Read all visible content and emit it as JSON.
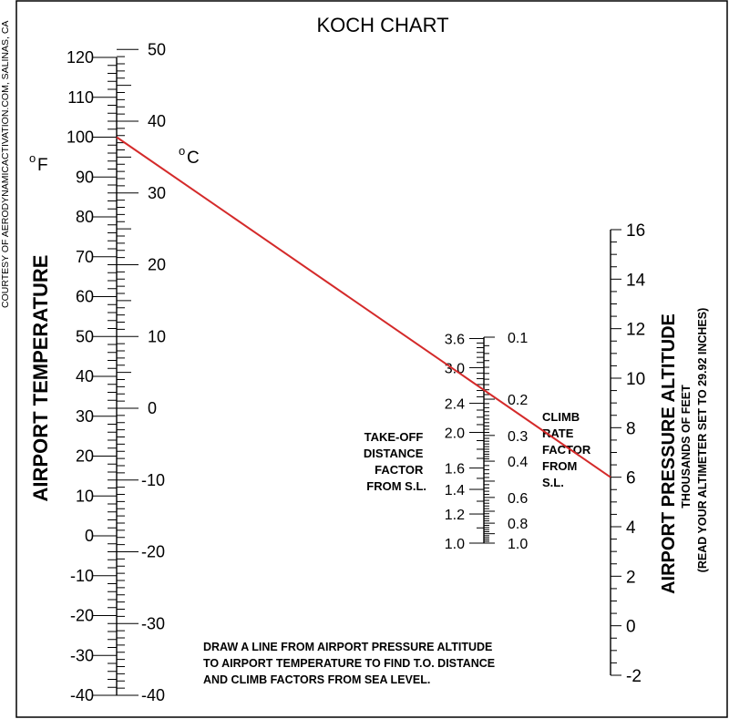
{
  "title": "KOCH CHART",
  "credit": "COURTESY OF AERODYNAMICACTIVATION.COM, SALINAS, CA",
  "temperature": {
    "axis_title": "AIRPORT TEMPERATURE",
    "f_unit": "F",
    "c_unit": "C",
    "unit_mark": "o",
    "f_range": [
      -40,
      120
    ],
    "c_range": [
      -40,
      50
    ],
    "f_labels": [
      "120",
      "110",
      "100",
      "90",
      "80",
      "70",
      "60",
      "50",
      "40",
      "30",
      "20",
      "10",
      "0",
      "-10",
      "-20",
      "-30",
      "-40"
    ],
    "c_labels": [
      "50",
      "40",
      "30",
      "20",
      "10",
      "0",
      "-10",
      "-20",
      "-30",
      "-40"
    ]
  },
  "takeoff": {
    "title_lines": [
      "TAKE-OFF",
      "DISTANCE",
      "FACTOR",
      "FROM S.L."
    ],
    "labels": [
      "3.6",
      "3.0",
      "2.4",
      "2.0",
      "1.6",
      "1.4",
      "1.2",
      "1.0"
    ]
  },
  "climb": {
    "title_lines": [
      "CLIMB",
      "RATE",
      "FACTOR",
      "FROM",
      "S.L."
    ],
    "labels": [
      "0.1",
      "0.2",
      "0.3",
      "0.4",
      "0.6",
      "0.8",
      "1.0"
    ]
  },
  "altitude": {
    "axis_title": "AIRPORT PRESSURE ALTITUDE",
    "subtitle": "THOUSANDS OF FEET",
    "note": "(READ YOUR ALTIMETER SET TO 29.92 INCHES)",
    "range": [
      -2,
      16
    ],
    "labels": [
      "16",
      "14",
      "12",
      "10",
      "8",
      "6",
      "4",
      "2",
      "0",
      "-2"
    ]
  },
  "example_line": {
    "color": "#d42a2a",
    "from_temperature_f": 100,
    "to_altitude_kft": 6
  },
  "instructions": [
    "DRAW A LINE FROM AIRPORT PRESSURE ALTITUDE",
    "TO AIRPORT TEMPERATURE TO FIND T.O. DISTANCE",
    "AND CLIMB FACTORS FROM SEA LEVEL."
  ]
}
